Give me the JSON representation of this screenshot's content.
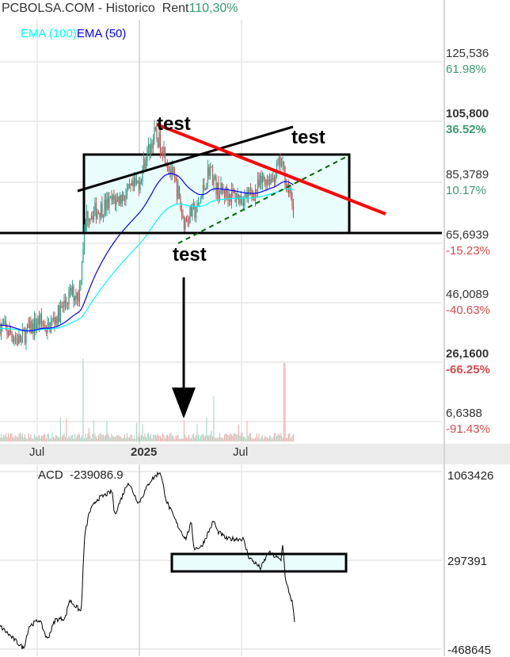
{
  "header": {
    "title": "PCBOLSA.COM - Historico",
    "rent_label": "Rent",
    "rent_value": "110,30%"
  },
  "legend": [
    {
      "name": "EMA (100)",
      "color": "#00ffff"
    },
    {
      "name": "EMA (50)",
      "color": "#0000ff"
    }
  ],
  "price_axis": [
    {
      "price": "125,536",
      "pct": "61.98%",
      "sign": "pos",
      "bold": false
    },
    {
      "price": "105,800",
      "pct": "36.52%",
      "sign": "pos",
      "bold": true
    },
    {
      "price": "85,3789",
      "pct": "10.17%",
      "sign": "pos",
      "bold": false
    },
    {
      "price": "65,6939",
      "pct": "-15.23%",
      "sign": "neg",
      "bold": false
    },
    {
      "price": "46,0089",
      "pct": "-40.63%",
      "sign": "neg",
      "bold": false
    },
    {
      "price": "26,1600",
      "pct": "-66.25%",
      "sign": "neg",
      "bold": true
    },
    {
      "price": "6,6388",
      "pct": "-91.43%",
      "sign": "neg",
      "bold": false
    }
  ],
  "date_axis": [
    "Jul",
    "2025",
    "Jul"
  ],
  "annotations": [
    "test",
    "test",
    "test"
  ],
  "acd": {
    "label": "ACD",
    "value": "-239086.9",
    "axis": [
      "1063426",
      "297391",
      "-468645"
    ]
  },
  "colors": {
    "up": "#2ca58d",
    "down": "#c8585a",
    "box_fill": "#eafdfd",
    "trend_red": "#ff0000",
    "trend_green": "#006400"
  },
  "chart_data": [
    {
      "type": "candlestick",
      "title": "",
      "ylim": [
        6.6388,
        125.536
      ],
      "yticks": [
        125.536,
        105.8,
        85.3789,
        65.6939,
        46.0089,
        26.16,
        6.6388
      ],
      "xticks": [
        "Jul",
        "2025",
        "Jul"
      ],
      "grid": true,
      "overlays": [
        "EMA (100)",
        "EMA (50)"
      ],
      "series": [
        {
          "values": [
            {
              "date": "2024-04-29",
              "close": 38.8
            },
            {
              "date": "2024-06-03",
              "close": 33.6
            },
            {
              "date": "2024-06-17",
              "close": 36.8
            },
            {
              "date": "2024-07-08",
              "close": 40.2
            },
            {
              "date": "2024-07-22",
              "close": 37.5
            },
            {
              "date": "2024-08-12",
              "close": 42.8
            },
            {
              "date": "2024-09-02",
              "close": 49.3
            },
            {
              "date": "2024-09-16",
              "close": 48.8
            },
            {
              "date": "2024-09-23",
              "close": 65.0
            },
            {
              "date": "2024-09-30",
              "close": 75.4
            },
            {
              "date": "2024-10-21",
              "close": 76.7
            },
            {
              "date": "2024-11-11",
              "close": 79.3
            },
            {
              "date": "2024-12-10",
              "close": 81.9
            },
            {
              "date": "2024-12-31",
              "close": 85.8
            },
            {
              "date": "2025-01-14",
              "close": 95.0
            },
            {
              "date": "2025-01-28",
              "close": 101.5
            },
            {
              "date": "2025-02-11",
              "close": 97.6
            },
            {
              "date": "2025-02-25",
              "close": 89.8
            },
            {
              "date": "2025-03-11",
              "close": 81.9
            },
            {
              "date": "2025-03-20",
              "close": 72.8
            },
            {
              "date": "2025-03-31",
              "close": 75.4
            },
            {
              "date": "2025-04-14",
              "close": 76.7
            },
            {
              "date": "2025-04-28",
              "close": 85.8
            },
            {
              "date": "2025-05-05",
              "close": 91.0
            },
            {
              "date": "2025-05-19",
              "close": 83.2
            },
            {
              "date": "2025-06-09",
              "close": 81.9
            },
            {
              "date": "2025-06-30",
              "close": 80.6
            },
            {
              "date": "2025-07-21",
              "close": 81.9
            },
            {
              "date": "2025-08-11",
              "close": 87.2
            },
            {
              "date": "2025-08-25",
              "close": 87.2
            },
            {
              "date": "2025-09-08",
              "close": 92.4
            },
            {
              "date": "2025-09-15",
              "close": 88.5
            },
            {
              "date": "2025-09-22",
              "close": 83.2
            },
            {
              "date": "2025-10-02",
              "close": 76.7
            }
          ]
        }
      ]
    },
    {
      "type": "line",
      "title": "ACD",
      "ylim": [
        -468645,
        1063426
      ],
      "yticks": [
        1063426,
        297391,
        -468645
      ],
      "series": [
        {
          "name": "ACD",
          "values": [
            {
              "date": "2024-04-29",
              "value": -270000
            },
            {
              "date": "2024-06-10",
              "value": -463000
            },
            {
              "date": "2024-06-20",
              "value": -270000
            },
            {
              "date": "2024-07-08",
              "value": -215000
            },
            {
              "date": "2024-07-22",
              "value": -386000
            },
            {
              "date": "2024-08-05",
              "value": -215000
            },
            {
              "date": "2024-08-23",
              "value": -201000
            },
            {
              "date": "2024-08-30",
              "value": -45000
            },
            {
              "date": "2024-09-20",
              "value": -147000
            },
            {
              "date": "2024-09-26",
              "value": 502000
            },
            {
              "date": "2024-10-04",
              "value": 708000
            },
            {
              "date": "2024-10-18",
              "value": 824000
            },
            {
              "date": "2024-11-14",
              "value": 892000
            },
            {
              "date": "2024-11-18",
              "value": 687000
            },
            {
              "date": "2024-12-12",
              "value": 975000
            },
            {
              "date": "2024-12-31",
              "value": 790000
            },
            {
              "date": "2025-01-20",
              "value": 981000
            },
            {
              "date": "2025-02-07",
              "value": 1063000
            },
            {
              "date": "2025-02-18",
              "value": 810000
            },
            {
              "date": "2025-03-10",
              "value": 598000
            },
            {
              "date": "2025-03-24",
              "value": 482000
            },
            {
              "date": "2025-04-03",
              "value": 619000
            },
            {
              "date": "2025-04-08",
              "value": 400000
            },
            {
              "date": "2025-04-21",
              "value": 414000
            },
            {
              "date": "2025-05-13",
              "value": 639000
            },
            {
              "date": "2025-05-19",
              "value": 550000
            },
            {
              "date": "2025-06-05",
              "value": 482000
            },
            {
              "date": "2025-07-04",
              "value": 482000
            },
            {
              "date": "2025-07-14",
              "value": 325000
            },
            {
              "date": "2025-08-04",
              "value": 229000
            },
            {
              "date": "2025-08-18",
              "value": 366000
            },
            {
              "date": "2025-09-09",
              "value": 297000
            },
            {
              "date": "2025-09-12",
              "value": 448000
            },
            {
              "date": "2025-09-17",
              "value": 120000
            },
            {
              "date": "2025-09-29",
              "value": -65000
            },
            {
              "date": "2025-10-03",
              "value": -239086.9
            }
          ]
        }
      ]
    }
  ]
}
